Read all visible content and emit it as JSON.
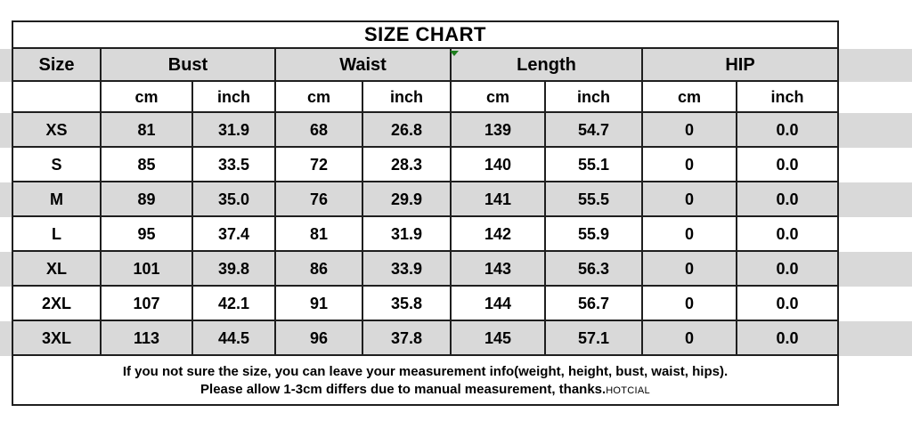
{
  "title": "SIZE CHART",
  "columns": {
    "groups": [
      {
        "label": "Size"
      },
      {
        "label": "Bust"
      },
      {
        "label": "Waist"
      },
      {
        "label": "Length"
      },
      {
        "label": "HIP"
      }
    ],
    "units": [
      "cm",
      "inch",
      "cm",
      "inch",
      "cm",
      "inch",
      "cm",
      "inch"
    ]
  },
  "rows": [
    {
      "size": "XS",
      "values": [
        "81",
        "31.9",
        "68",
        "26.8",
        "139",
        "54.7",
        "0",
        "0.0"
      ]
    },
    {
      "size": "S",
      "values": [
        "85",
        "33.5",
        "72",
        "28.3",
        "140",
        "55.1",
        "0",
        "0.0"
      ]
    },
    {
      "size": "M",
      "values": [
        "89",
        "35.0",
        "76",
        "29.9",
        "141",
        "55.5",
        "0",
        "0.0"
      ]
    },
    {
      "size": "L",
      "values": [
        "95",
        "37.4",
        "81",
        "31.9",
        "142",
        "55.9",
        "0",
        "0.0"
      ]
    },
    {
      "size": "XL",
      "values": [
        "101",
        "39.8",
        "86",
        "33.9",
        "143",
        "56.3",
        "0",
        "0.0"
      ]
    },
    {
      "size": "2XL",
      "values": [
        "107",
        "42.1",
        "91",
        "35.8",
        "144",
        "56.7",
        "0",
        "0.0"
      ]
    },
    {
      "size": "3XL",
      "values": [
        "113",
        "44.5",
        "96",
        "37.8",
        "145",
        "57.1",
        "0",
        "0.0"
      ]
    }
  ],
  "footer": {
    "line1": "If you not sure the size, you can leave your measurement info(weight, height, bust, waist, hips).",
    "line2": "Please allow 1-3cm differs due to manual measurement, thanks.",
    "brand": "HOTCIAL"
  },
  "colors": {
    "stripe_gray": "#d9d9d9",
    "row_white": "#ffffff",
    "border": "#1f1f1f",
    "text": "#000000",
    "marker_green": "#1e7e1e"
  }
}
